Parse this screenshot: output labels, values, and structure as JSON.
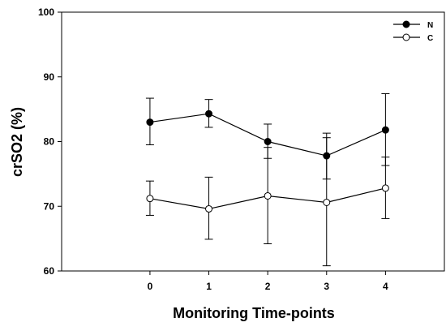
{
  "chart_data": {
    "type": "line",
    "title": "",
    "xlabel": "Monitoring Time-points",
    "ylabel": "crSO2 (%)",
    "x": [
      0,
      1,
      2,
      3,
      4
    ],
    "x_ticks": [
      "0",
      "1",
      "2",
      "3",
      "4"
    ],
    "xlim": [
      -1.5,
      5
    ],
    "ylim": [
      60,
      100
    ],
    "y_ticks": [
      "60",
      "70",
      "80",
      "90",
      "100"
    ],
    "grid": false,
    "legend_position": "top-right",
    "series": [
      {
        "name": "N",
        "marker": "filled-circle",
        "values": [
          83.0,
          84.3,
          80.0,
          77.8,
          81.8
        ],
        "err_upper": [
          86.7,
          86.5,
          82.7,
          81.3,
          87.4
        ],
        "err_lower": [
          79.5,
          82.2,
          77.4,
          74.2,
          76.3
        ]
      },
      {
        "name": "C",
        "marker": "open-circle",
        "values": [
          71.2,
          69.6,
          71.6,
          70.6,
          72.8
        ],
        "err_upper": [
          73.9,
          74.5,
          79.1,
          80.6,
          77.6
        ],
        "err_lower": [
          68.6,
          64.9,
          64.2,
          60.8,
          68.1
        ]
      }
    ]
  }
}
